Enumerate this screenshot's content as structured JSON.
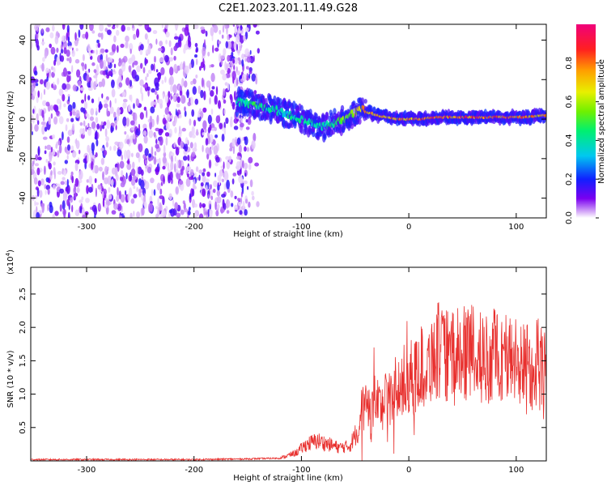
{
  "title": "C2E1.2023.201.11.49.G28",
  "chart_data": [
    {
      "type": "heatmap",
      "xlabel": "Height of straight line (km)",
      "ylabel": "Frequency (Hz)",
      "xlim": [
        -352,
        128
      ],
      "ylim": [
        -50,
        48
      ],
      "xticks": [
        "-300",
        "-200",
        "-100",
        "0",
        "100"
      ],
      "yticks": [
        "-40",
        "-20",
        "0",
        "20",
        "40"
      ],
      "colorbar": {
        "label": "Normalized spectral amplitude",
        "range": [
          0,
          1
        ],
        "ticks": [
          "0.0",
          "0.2",
          "0.4",
          "0.6",
          "0.8"
        ]
      },
      "noise_region_x": [
        -352,
        -160
      ],
      "ridge": {
        "x": [
          -160,
          -140,
          -120,
          -100,
          -80,
          -60,
          -45,
          -30,
          -10,
          10,
          30,
          60,
          90,
          110,
          128
        ],
        "frequency": [
          9,
          7,
          4,
          0,
          -4,
          0,
          5,
          2,
          0,
          0,
          1,
          1,
          1,
          1,
          2
        ],
        "amplitude": [
          0.45,
          0.5,
          0.4,
          0.45,
          0.4,
          0.6,
          0.75,
          0.8,
          0.85,
          0.9,
          0.9,
          0.9,
          0.85,
          0.85,
          0.8
        ]
      }
    },
    {
      "type": "line",
      "xlabel": "Height of straight line (km)",
      "ylabel": "SNR (10 * v/v)",
      "multiplier": "(x10",
      "multiplier_exp": "4",
      "multiplier_close": ")",
      "xlim": [
        -352,
        128
      ],
      "ylim": [
        0,
        2.9
      ],
      "xticks": [
        "-300",
        "-200",
        "-100",
        "0",
        "100"
      ],
      "yticks": [
        "0.5",
        "1.0",
        "1.5",
        "2.0",
        "2.5"
      ],
      "series": [
        {
          "color": "#e8302e",
          "x": [
            -352,
            -300,
            -250,
            -200,
            -150,
            -120,
            -105,
            -95,
            -85,
            -75,
            -65,
            -55,
            -48,
            -44,
            -40,
            -35,
            -30,
            -25,
            -20,
            -15,
            -10,
            -5,
            0,
            5,
            10,
            15,
            20,
            25,
            30,
            40,
            50,
            60,
            70,
            80,
            90,
            100,
            105,
            110,
            115,
            120,
            125,
            128
          ],
          "y": [
            0.02,
            0.02,
            0.02,
            0.02,
            0.03,
            0.04,
            0.12,
            0.25,
            0.3,
            0.25,
            0.2,
            0.22,
            0.45,
            0.75,
            0.8,
            0.7,
            0.9,
            0.8,
            1.0,
            0.9,
            1.1,
            1.05,
            1.3,
            1.2,
            1.45,
            1.35,
            1.5,
            1.7,
            1.6,
            1.55,
            1.6,
            1.65,
            1.5,
            1.6,
            1.55,
            1.5,
            1.4,
            1.6,
            1.3,
            1.55,
            1.4,
            1.5
          ]
        }
      ]
    }
  ]
}
